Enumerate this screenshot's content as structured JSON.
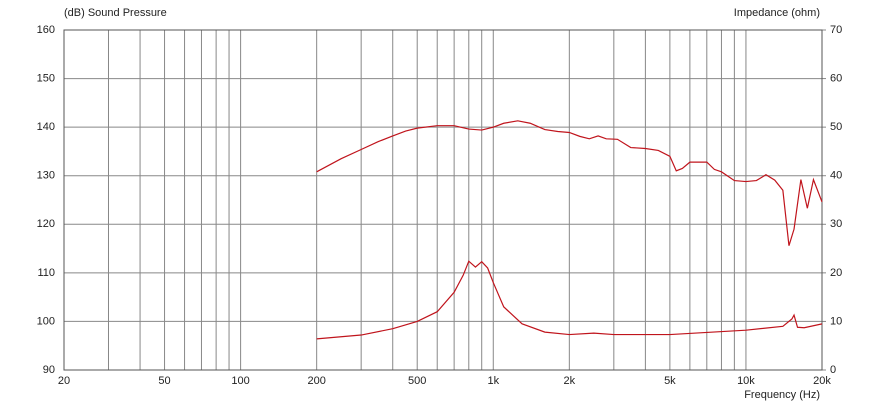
{
  "chart_data": {
    "type": "line",
    "title": "(dB)  Sound Pressure",
    "y2_title": "Impedance  (ohm)",
    "x_label": "Frequency  (Hz)",
    "log_x": true,
    "grid": true,
    "xlim": [
      20,
      20000
    ],
    "xticks": [
      20,
      50,
      100,
      200,
      500,
      {
        "value": 1000,
        "label": "1k"
      },
      {
        "value": 2000,
        "label": "2k"
      },
      {
        "value": 5000,
        "label": "5k"
      },
      {
        "value": 10000,
        "label": "10k"
      },
      {
        "value": 20000,
        "label": "20k"
      }
    ],
    "x_minor_ticks": [
      30,
      40,
      60,
      70,
      80,
      90,
      300,
      400,
      600,
      700,
      800,
      900,
      3000,
      4000,
      6000,
      7000,
      8000,
      9000
    ],
    "ylim": [
      90,
      160
    ],
    "yticks": [
      90,
      100,
      110,
      120,
      130,
      140,
      150,
      160
    ],
    "y2lim": [
      0,
      70
    ],
    "y2ticks": [
      0,
      10,
      20,
      30,
      40,
      50,
      60,
      70
    ],
    "series": [
      {
        "name": "Sound Pressure",
        "color": "#c0141c",
        "x": [
          200,
          250,
          300,
          350,
          400,
          450,
          500,
          600,
          700,
          800,
          900,
          1000,
          1100,
          1250,
          1400,
          1600,
          1800,
          2000,
          2200,
          2400,
          2600,
          2800,
          3100,
          3500,
          4000,
          4500,
          5000,
          5300,
          5600,
          6000,
          7000,
          7500,
          8000,
          9000,
          10000,
          11000,
          12000,
          13000,
          14000,
          14800,
          15500,
          16500,
          17500,
          18500,
          20000
        ],
        "values": [
          130.8,
          133.5,
          135.4,
          137,
          138.2,
          139.2,
          139.8,
          140.3,
          140.3,
          139.6,
          139.4,
          140,
          140.8,
          141.3,
          140.8,
          139.5,
          139.1,
          138.9,
          138.1,
          137.6,
          138.2,
          137.6,
          137.5,
          135.8,
          135.6,
          135.2,
          134,
          131,
          131.5,
          132.8,
          132.8,
          131.3,
          130.8,
          129,
          128.8,
          129,
          130.2,
          129.1,
          127,
          115.6,
          119,
          129.2,
          123.3,
          129.2,
          124.6
        ]
      },
      {
        "name": "Impedance",
        "color": "#c0141c",
        "axis": "y2",
        "x": [
          200,
          300,
          400,
          500,
          600,
          700,
          760,
          800,
          850,
          900,
          950,
          1000,
          1100,
          1300,
          1600,
          2000,
          2500,
          3000,
          5000,
          10000,
          14000,
          15200,
          15500,
          16000,
          17000,
          20000
        ],
        "values": [
          6.4,
          7.2,
          8.5,
          10,
          12,
          16,
          19.5,
          22.4,
          21.2,
          22.3,
          21,
          18,
          13,
          9.5,
          7.8,
          7.3,
          7.6,
          7.3,
          7.3,
          8.2,
          9,
          10.5,
          11.3,
          8.8,
          8.7,
          9.5
        ]
      }
    ]
  }
}
